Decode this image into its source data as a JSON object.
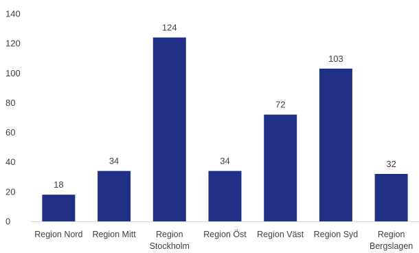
{
  "chart_data": {
    "type": "bar",
    "title": "",
    "xlabel": "",
    "ylabel": "",
    "categories": [
      [
        "Region Nord"
      ],
      [
        "Region Mitt"
      ],
      [
        "Region",
        "Stockholm"
      ],
      [
        "Region Öst"
      ],
      [
        "Region Väst"
      ],
      [
        "Region Syd"
      ],
      [
        "Region",
        "Bergslagen"
      ]
    ],
    "values": [
      18,
      34,
      124,
      34,
      72,
      103,
      32
    ],
    "ylim": [
      0,
      140
    ],
    "yticks": [
      0,
      20,
      40,
      60,
      80,
      100,
      120,
      140
    ],
    "grid": false,
    "legend": "none",
    "bar_color": "#203087",
    "axis_color": "#d9d9d9"
  }
}
